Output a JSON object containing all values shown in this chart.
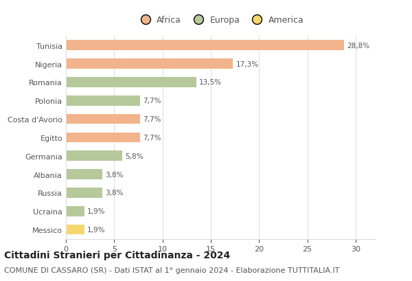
{
  "countries": [
    "Tunisia",
    "Nigeria",
    "Romania",
    "Polonia",
    "Costa d'Avorio",
    "Egitto",
    "Germania",
    "Albania",
    "Russia",
    "Ucraina",
    "Messico"
  ],
  "values": [
    28.8,
    17.3,
    13.5,
    7.7,
    7.7,
    7.7,
    5.8,
    3.8,
    3.8,
    1.9,
    1.9
  ],
  "labels": [
    "28,8%",
    "17,3%",
    "13,5%",
    "7,7%",
    "7,7%",
    "7,7%",
    "5,8%",
    "3,8%",
    "3,8%",
    "1,9%",
    "1,9%"
  ],
  "continents": [
    "Africa",
    "Africa",
    "Europa",
    "Europa",
    "Africa",
    "Africa",
    "Europa",
    "Europa",
    "Europa",
    "Europa",
    "America"
  ],
  "colors": {
    "Africa": "#F2B48C",
    "Europa": "#B5C99A",
    "America": "#F5D76E"
  },
  "legend_labels": [
    "Africa",
    "Europa",
    "America"
  ],
  "xlim": [
    0,
    32
  ],
  "xticks": [
    0,
    5,
    10,
    15,
    20,
    25,
    30
  ],
  "title": "Cittadini Stranieri per Cittadinanza - 2024",
  "subtitle": "COMUNE DI CASSARO (SR) - Dati ISTAT al 1° gennaio 2024 - Elaborazione TUTTITALIA.IT",
  "title_fontsize": 10,
  "subtitle_fontsize": 8,
  "label_fontsize": 7.5,
  "tick_fontsize": 8,
  "legend_fontsize": 9,
  "bar_height": 0.55,
  "background_color": "#ffffff",
  "grid_color": "#dddddd",
  "text_color": "#555555"
}
